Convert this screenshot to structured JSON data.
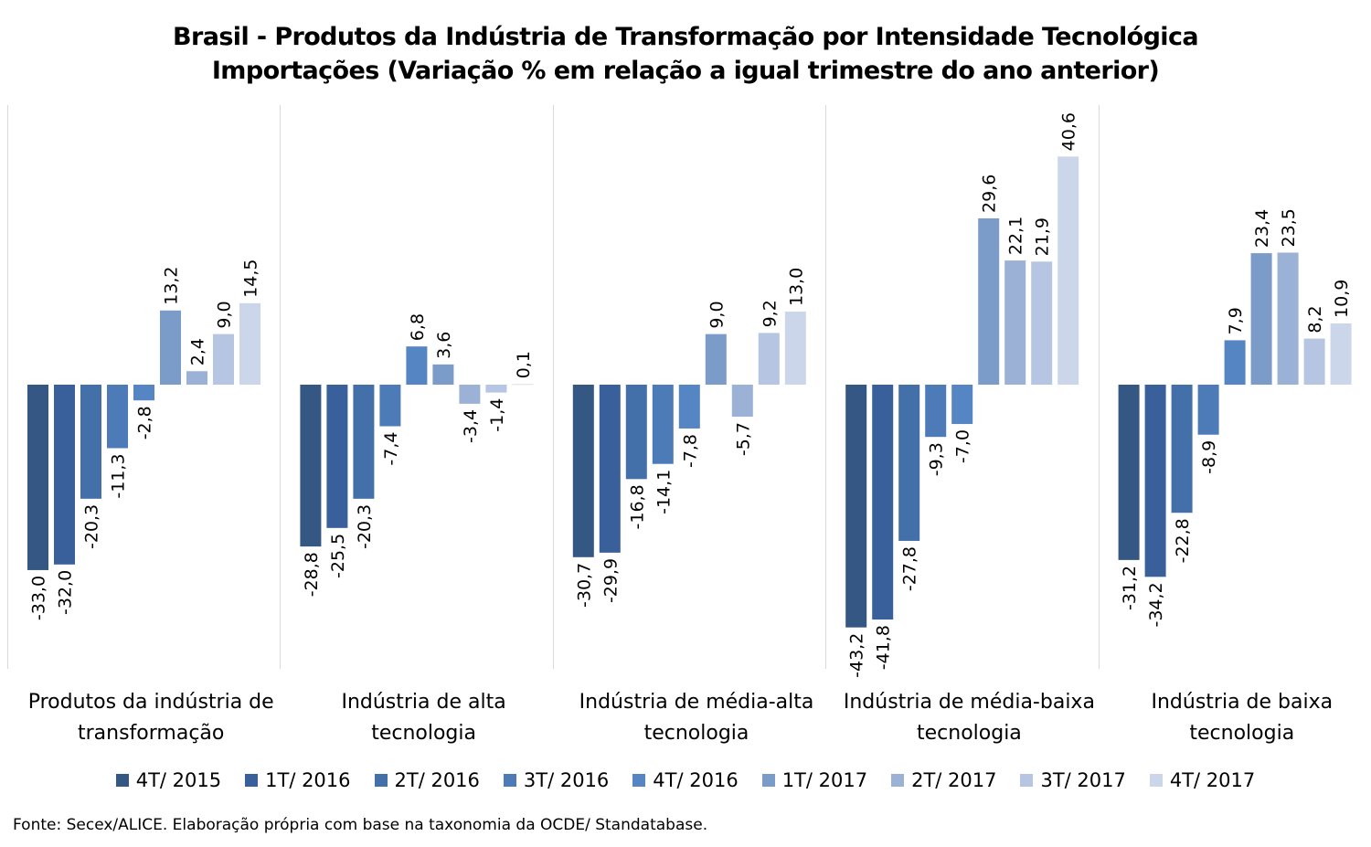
{
  "chart_data": {
    "type": "bar",
    "title": [
      "Brasil - Produtos da Indústria de Transformação por Intensidade Tecnológica",
      "Importações (Variação % em relação a igual trimestre do ano anterior)"
    ],
    "categories": [
      [
        "Produtos da indústria de",
        "transformação"
      ],
      [
        "Indústria de alta",
        "tecnologia"
      ],
      [
        "Indústria de média-alta",
        "tecnologia"
      ],
      [
        "Indústria de média-baixa",
        "tecnologia"
      ],
      [
        "Indústria de baixa",
        "tecnologia"
      ]
    ],
    "series": [
      {
        "name": "4T/ 2015",
        "color": "#355784",
        "values": [
          -33.0,
          -28.8,
          -30.7,
          -43.2,
          -31.2
        ]
      },
      {
        "name": "1T/ 2016",
        "color": "#39609a",
        "values": [
          -32.0,
          -25.5,
          -29.9,
          -41.8,
          -34.2
        ]
      },
      {
        "name": "2T/ 2016",
        "color": "#4470aa",
        "values": [
          -20.3,
          -20.3,
          -16.8,
          -27.8,
          -22.8
        ]
      },
      {
        "name": "3T/ 2016",
        "color": "#4c7bb8",
        "values": [
          -11.3,
          -7.4,
          -14.1,
          -9.3,
          -8.9
        ]
      },
      {
        "name": "4T/ 2016",
        "color": "#5585c2",
        "values": [
          -2.8,
          6.8,
          -7.8,
          -7.0,
          7.9
        ]
      },
      {
        "name": "1T/ 2017",
        "color": "#7b9bc9",
        "values": [
          13.2,
          3.6,
          9.0,
          29.6,
          23.4
        ]
      },
      {
        "name": "2T/ 2017",
        "color": "#9cb1d6",
        "values": [
          2.4,
          -3.4,
          -5.7,
          22.1,
          23.5
        ]
      },
      {
        "name": "3T/ 2017",
        "color": "#b6c5e2",
        "values": [
          9.0,
          -1.4,
          9.2,
          21.9,
          8.2
        ]
      },
      {
        "name": "4T/ 2017",
        "color": "#ccd6ea",
        "values": [
          14.5,
          0.1,
          13.0,
          40.6,
          10.9
        ]
      }
    ],
    "data_labels": [
      [
        "-33,0",
        "-32,0",
        "-20,3",
        "-11,3",
        "-2,8",
        "13,2",
        "2,4",
        "9,0",
        "14,5"
      ],
      [
        "-28,8",
        "-25,5",
        "-20,3",
        "-7,4",
        "6,8",
        "3,6",
        "-3,4",
        "-1,4",
        "0,1"
      ],
      [
        "-30,7",
        "-29,9",
        "-16,8",
        "-14,1",
        "-7,8",
        "9,0",
        "-5,7",
        "9,2",
        "13,0"
      ],
      [
        "-43,2",
        "-41,8",
        "-27,8",
        "-9,3",
        "-7,0",
        "29,6",
        "22,1",
        "21,9",
        "40,6"
      ],
      [
        "-31,2",
        "-34,2",
        "-22,8",
        "-8,9",
        "7,9",
        "23,4",
        "23,5",
        "8,2",
        "10,9"
      ]
    ],
    "ylim": [
      -50,
      50
    ],
    "grid": false,
    "legend_position": "bottom"
  },
  "source_note": "Fonte: Secex/ALICE. Elaboração própria com base na taxonomia da OCDE/ Standatabase."
}
